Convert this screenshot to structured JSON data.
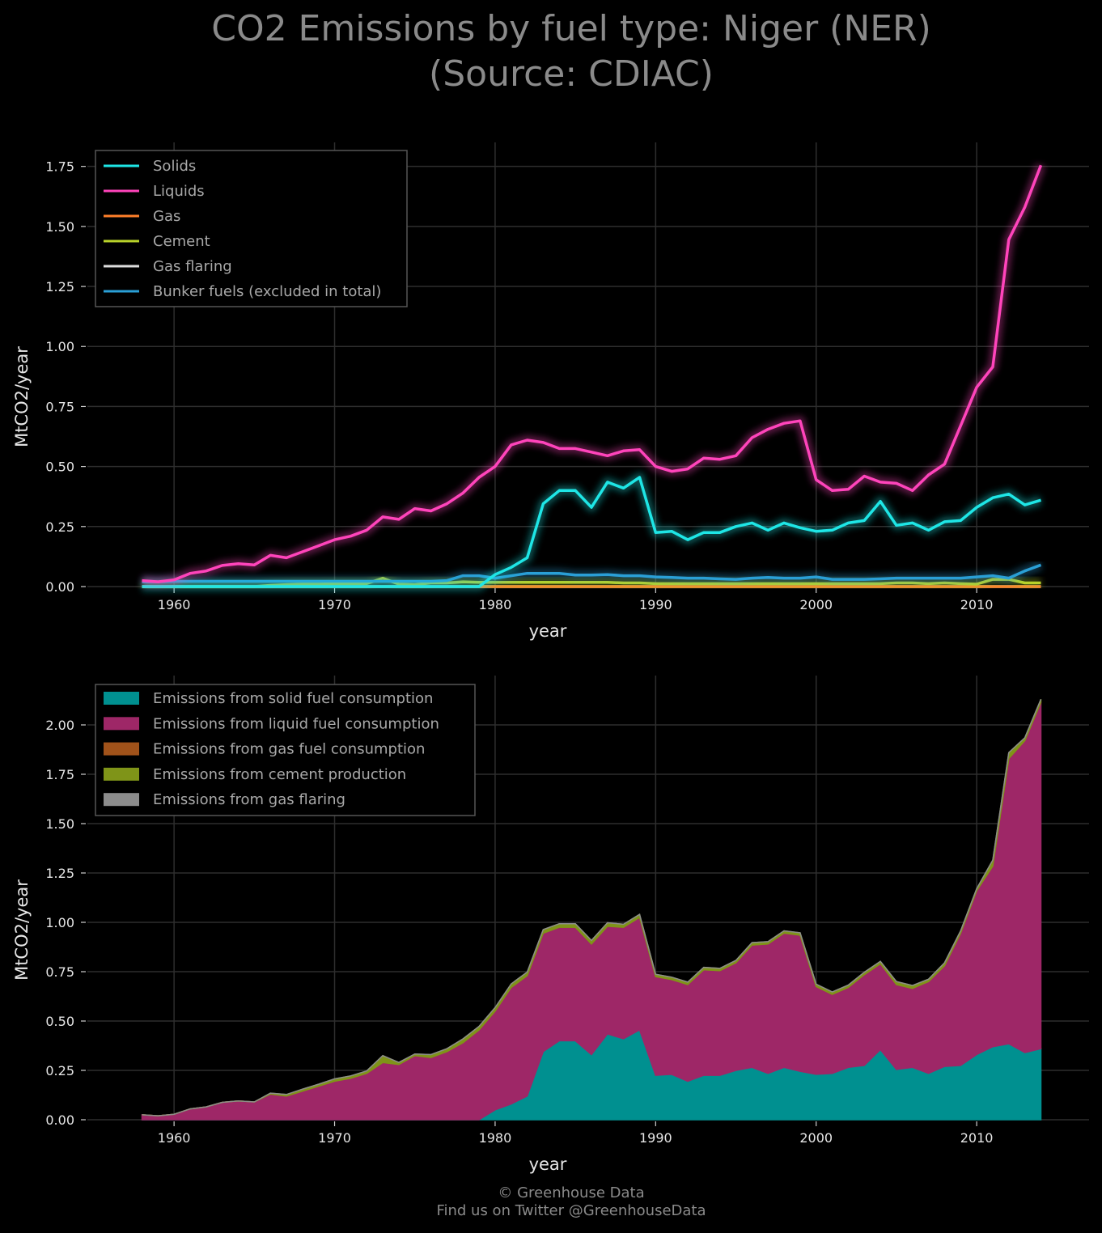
{
  "title_line1": "CO2 Emissions by fuel type: Niger (NER)",
  "title_line2": "(Source: CDIAC)",
  "credit_line1": "© Greenhouse Data",
  "credit_line2": "Find us on Twitter @GreenhouseData",
  "colors": {
    "solids": "#1ee6e6",
    "liquids": "#ff44bb",
    "gas": "#ff7f2a",
    "cement": "#b8d22a",
    "flaring": "#dddddd",
    "bunker": "#2a9fd6",
    "area_solid": "#009090",
    "area_liquid": "#9e2767",
    "area_gas": "#a0521a",
    "area_cement": "#7f9418",
    "area_flaring": "#8c8c8c"
  },
  "chart_data": [
    {
      "type": "line",
      "xlabel": "year",
      "ylabel": "MtCO2/year",
      "xlim": [
        1954.6,
        2017.0
      ],
      "ylim": [
        0,
        1.85
      ],
      "xticks": [
        "1960",
        "1970",
        "1980",
        "1990",
        "2000",
        "2010"
      ],
      "yticks": [
        "0.00",
        "0.25",
        "0.50",
        "0.75",
        "1.00",
        "1.25",
        "1.50",
        "1.75"
      ],
      "grid": true,
      "legend_position": "top-left",
      "x": [
        1958,
        1959,
        1960,
        1961,
        1962,
        1963,
        1964,
        1965,
        1966,
        1967,
        1968,
        1969,
        1970,
        1971,
        1972,
        1973,
        1974,
        1975,
        1976,
        1977,
        1978,
        1979,
        1980,
        1981,
        1982,
        1983,
        1984,
        1985,
        1986,
        1987,
        1988,
        1989,
        1990,
        1991,
        1992,
        1993,
        1994,
        1995,
        1996,
        1997,
        1998,
        1999,
        2000,
        2001,
        2002,
        2003,
        2004,
        2005,
        2006,
        2007,
        2008,
        2009,
        2010,
        2011,
        2012,
        2013,
        2014
      ],
      "series": [
        {
          "name": "Solids",
          "values": [
            0,
            0,
            0,
            0,
            0,
            0,
            0,
            0,
            0,
            0,
            0,
            0,
            0,
            0,
            0,
            0,
            0,
            0,
            0,
            0,
            0,
            0,
            0.05,
            0.08,
            0.12,
            0.345,
            0.4,
            0.4,
            0.33,
            0.435,
            0.41,
            0.455,
            0.225,
            0.23,
            0.195,
            0.225,
            0.225,
            0.25,
            0.265,
            0.235,
            0.265,
            0.245,
            0.23,
            0.235,
            0.265,
            0.275,
            0.355,
            0.255,
            0.265,
            0.235,
            0.27,
            0.275,
            0.33,
            0.37,
            0.385,
            0.34,
            0.36
          ]
        },
        {
          "name": "Liquids",
          "values": [
            0.025,
            0.02,
            0.028,
            0.055,
            0.065,
            0.088,
            0.095,
            0.09,
            0.13,
            0.12,
            0.145,
            0.17,
            0.195,
            0.21,
            0.235,
            0.29,
            0.28,
            0.325,
            0.315,
            0.345,
            0.39,
            0.455,
            0.5,
            0.59,
            0.61,
            0.6,
            0.575,
            0.575,
            0.56,
            0.545,
            0.565,
            0.57,
            0.5,
            0.48,
            0.49,
            0.535,
            0.53,
            0.545,
            0.62,
            0.655,
            0.68,
            0.69,
            0.445,
            0.4,
            0.405,
            0.46,
            0.435,
            0.43,
            0.4,
            0.465,
            0.51,
            0.67,
            0.83,
            0.915,
            1.445,
            1.58,
            1.755
          ]
        },
        {
          "name": "Gas",
          "values": [
            0,
            0,
            0,
            0,
            0,
            0,
            0,
            0,
            0,
            0,
            0,
            0,
            0,
            0,
            0,
            0,
            0,
            0,
            0,
            0,
            0,
            0,
            0,
            0,
            0,
            0,
            0,
            0,
            0,
            0,
            0,
            0,
            0,
            0,
            0,
            0,
            0,
            0,
            0,
            0,
            0,
            0,
            0,
            0,
            0,
            0,
            0,
            0,
            0,
            0,
            0,
            0,
            0,
            0,
            0,
            0,
            0
          ]
        },
        {
          "name": "Cement",
          "values": [
            0,
            0,
            0,
            0,
            0,
            0,
            0,
            0,
            0.005,
            0.008,
            0.01,
            0.01,
            0.012,
            0.012,
            0.012,
            0.035,
            0.01,
            0.008,
            0.015,
            0.015,
            0.02,
            0.018,
            0.018,
            0.018,
            0.018,
            0.018,
            0.018,
            0.018,
            0.018,
            0.018,
            0.015,
            0.015,
            0.012,
            0.012,
            0.012,
            0.012,
            0.012,
            0.012,
            0.012,
            0.012,
            0.012,
            0.012,
            0.012,
            0.012,
            0.012,
            0.012,
            0.012,
            0.015,
            0.015,
            0.012,
            0.015,
            0.012,
            0.01,
            0.03,
            0.03,
            0.015,
            0.015
          ]
        },
        {
          "name": "Gas flaring",
          "values": [
            0,
            0,
            0,
            0,
            0,
            0,
            0,
            0,
            0,
            0,
            0,
            0,
            0,
            0,
            0,
            0,
            0,
            0,
            0,
            0,
            0,
            0,
            0,
            0,
            0,
            0,
            0,
            0,
            0,
            0,
            0,
            0,
            0,
            0,
            0,
            0,
            0,
            0,
            0,
            0,
            0,
            0,
            0,
            0,
            0,
            0,
            0,
            0,
            0,
            0,
            0,
            0,
            0,
            0,
            0,
            0,
            0
          ]
        },
        {
          "name": "Bunker fuels (excluded in total)",
          "values": [
            0.02,
            0.02,
            0.022,
            0.022,
            0.022,
            0.022,
            0.022,
            0.022,
            0.022,
            0.022,
            0.022,
            0.022,
            0.022,
            0.022,
            0.022,
            0.022,
            0.022,
            0.022,
            0.022,
            0.025,
            0.045,
            0.045,
            0.035,
            0.045,
            0.055,
            0.055,
            0.055,
            0.048,
            0.048,
            0.05,
            0.045,
            0.045,
            0.04,
            0.038,
            0.035,
            0.035,
            0.032,
            0.03,
            0.035,
            0.038,
            0.035,
            0.035,
            0.04,
            0.03,
            0.03,
            0.03,
            0.032,
            0.035,
            0.035,
            0.035,
            0.035,
            0.035,
            0.04,
            0.045,
            0.035,
            0.065,
            0.09
          ]
        }
      ]
    },
    {
      "type": "area",
      "xlabel": "year",
      "ylabel": "MtCO2/year",
      "xlim": [
        1954.6,
        2017.0
      ],
      "ylim": [
        0,
        2.25
      ],
      "xticks": [
        "1960",
        "1970",
        "1980",
        "1990",
        "2000",
        "2010"
      ],
      "yticks": [
        "0.00",
        "0.25",
        "0.50",
        "0.75",
        "1.00",
        "1.25",
        "1.50",
        "1.75",
        "2.00"
      ],
      "grid": true,
      "stacked": true,
      "legend_position": "top-left",
      "series": [
        {
          "name": "Emissions from solid fuel consumption",
          "ref": "Solids"
        },
        {
          "name": "Emissions from liquid fuel consumption",
          "ref": "Liquids"
        },
        {
          "name": "Emissions from gas fuel consumption",
          "ref": "Gas"
        },
        {
          "name": "Emissions from cement production",
          "ref": "Cement"
        },
        {
          "name": "Emissions from gas flaring",
          "ref": "Gas flaring"
        }
      ]
    }
  ]
}
